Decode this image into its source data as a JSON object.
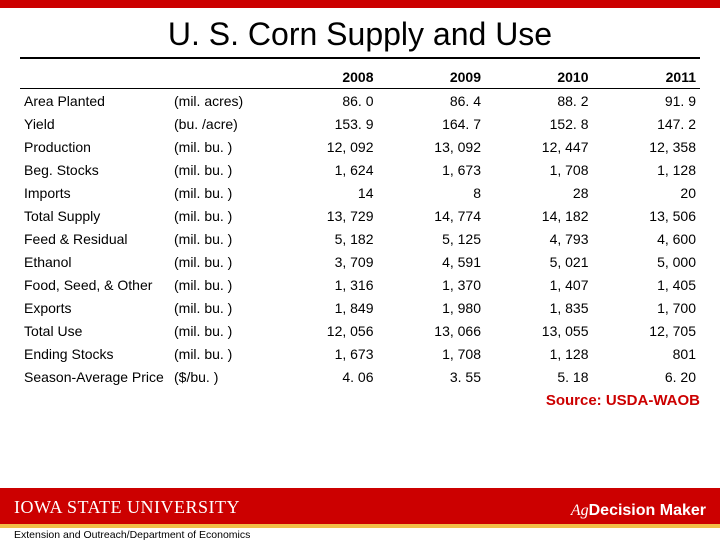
{
  "title": "U. S. Corn Supply and Use",
  "years": [
    "2008",
    "2009",
    "2010",
    "2011"
  ],
  "rows": [
    {
      "label": "Area Planted",
      "unit": "(mil. acres)",
      "vals": [
        "86. 0",
        "86. 4",
        "88. 2",
        "91. 9"
      ]
    },
    {
      "label": "Yield",
      "unit": "(bu. /acre)",
      "vals": [
        "153. 9",
        "164. 7",
        "152. 8",
        "147. 2"
      ]
    },
    {
      "label": "Production",
      "unit": "(mil. bu. )",
      "vals": [
        "12, 092",
        "13, 092",
        "12, 447",
        "12, 358"
      ]
    },
    {
      "label": "Beg. Stocks",
      "unit": "(mil. bu. )",
      "vals": [
        "1, 624",
        "1, 673",
        "1, 708",
        "1, 128"
      ]
    },
    {
      "label": "Imports",
      "unit": "(mil. bu. )",
      "vals": [
        "14",
        "8",
        "28",
        "20"
      ]
    },
    {
      "label": "Total Supply",
      "unit": "(mil. bu. )",
      "vals": [
        "13, 729",
        "14, 774",
        "14, 182",
        "13, 506"
      ]
    },
    {
      "label": "Feed & Residual",
      "unit": "(mil. bu. )",
      "vals": [
        "5, 182",
        "5, 125",
        "4, 793",
        "4, 600"
      ]
    },
    {
      "label": "Ethanol",
      "unit": "(mil. bu. )",
      "vals": [
        "3, 709",
        "4, 591",
        "5, 021",
        "5, 000"
      ]
    },
    {
      "label": "Food, Seed, & Other",
      "unit": "(mil. bu. )",
      "vals": [
        "1, 316",
        "1, 370",
        "1, 407",
        "1, 405"
      ]
    },
    {
      "label": "Exports",
      "unit": "(mil. bu. )",
      "vals": [
        "1, 849",
        "1, 980",
        "1, 835",
        "1, 700"
      ]
    },
    {
      "label": "Total Use",
      "unit": "(mil. bu. )",
      "vals": [
        "12, 056",
        "13, 066",
        "13, 055",
        "12, 705"
      ]
    },
    {
      "label": "Ending Stocks",
      "unit": "(mil. bu. )",
      "vals": [
        "1, 673",
        "1, 708",
        "1, 128",
        "801"
      ]
    },
    {
      "label": "Season-Average Price",
      "unit": "($/bu. )",
      "vals": [
        "4. 06",
        "3. 55",
        "5. 18",
        "6. 20"
      ]
    }
  ],
  "source": "Source: USDA-WAOB",
  "logo_text": "IOWA STATE UNIVERSITY",
  "agdm_ag": "Ag",
  "agdm_dm": "Decision Maker",
  "extension": "Extension and Outreach/Department of Economics",
  "colors": {
    "brand_red": "#cc0000",
    "brand_gold": "#f1be48"
  }
}
